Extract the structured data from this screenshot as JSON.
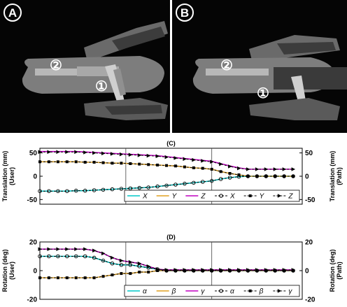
{
  "panels": {
    "a_label": "A",
    "b_label": "B",
    "marker_1": "①",
    "marker_2": "②"
  },
  "colors": {
    "x_user": "#00c8c8",
    "y_user": "#e0a020",
    "z_user": "#c000c0",
    "path": "#000000"
  },
  "chart_data": [
    {
      "type": "line",
      "title": "(C)",
      "ylabel_left": [
        "Translation (mm)",
        "(User)"
      ],
      "ylabel_right": [
        "Translation (mm)",
        "(Path)"
      ],
      "ylim": [
        -60,
        60
      ],
      "yticks": [
        50,
        0,
        -50
      ],
      "xlim": [
        0,
        29
      ],
      "vlines": [
        9.5,
        19
      ],
      "legend": {
        "placement": "bottom-right",
        "labels": [
          "X",
          "Y",
          "Z",
          "X",
          "Y",
          "Z"
        ]
      },
      "x": [
        0,
        1,
        2,
        3,
        4,
        5,
        6,
        7,
        8,
        9,
        10,
        11,
        12,
        13,
        14,
        15,
        16,
        17,
        18,
        19,
        20,
        21,
        22,
        23,
        24,
        25,
        26,
        27,
        28
      ],
      "series": [
        {
          "name": "X",
          "role": "user",
          "color": "#00c8c8",
          "values": [
            -32,
            -32,
            -32,
            -32,
            -31,
            -31,
            -30,
            -29,
            -28,
            -27,
            -26,
            -25,
            -24,
            -22,
            -20,
            -18,
            -16,
            -14,
            -12,
            -10,
            -6,
            -3,
            -1,
            0,
            0,
            0,
            0,
            0,
            0
          ]
        },
        {
          "name": "Y",
          "role": "user",
          "color": "#e0a020",
          "values": [
            31,
            31,
            31,
            31,
            31,
            30,
            30,
            29,
            28,
            28,
            27,
            26,
            25,
            24,
            23,
            22,
            20,
            18,
            17,
            15,
            10,
            6,
            3,
            0,
            0,
            0,
            0,
            0,
            0
          ]
        },
        {
          "name": "Z",
          "role": "user",
          "color": "#c000c0",
          "values": [
            53,
            53,
            53,
            53,
            53,
            52,
            51,
            50,
            49,
            48,
            47,
            46,
            45,
            44,
            42,
            40,
            38,
            36,
            34,
            32,
            27,
            22,
            18,
            15,
            15,
            15,
            15,
            15,
            15
          ]
        },
        {
          "name": "X",
          "role": "path",
          "marker": "circle",
          "values": [
            -32,
            -32,
            -32,
            -32,
            -31,
            -31,
            -30,
            -29,
            -28,
            -27,
            -26,
            -25,
            -24,
            -22,
            -20,
            -18,
            -16,
            -14,
            -12,
            -10,
            -6,
            -3,
            -1,
            0,
            0,
            0,
            0,
            0,
            0
          ]
        },
        {
          "name": "Y",
          "role": "path",
          "marker": "square",
          "values": [
            31,
            31,
            31,
            31,
            31,
            30,
            30,
            29,
            28,
            28,
            27,
            26,
            25,
            24,
            23,
            22,
            20,
            18,
            17,
            15,
            10,
            6,
            3,
            0,
            0,
            0,
            0,
            0,
            0
          ]
        },
        {
          "name": "Z",
          "role": "path",
          "marker": "triangle",
          "values": [
            52,
            52,
            52,
            52,
            52,
            51,
            50,
            49,
            48,
            47,
            46,
            45,
            44,
            43,
            41,
            39,
            37,
            35,
            33,
            31,
            26,
            21,
            17,
            15,
            15,
            15,
            15,
            15,
            15
          ]
        }
      ]
    },
    {
      "type": "line",
      "title": "(D)",
      "ylabel_left": [
        "Rotation (deg)",
        "(User)"
      ],
      "ylabel_right": [
        "Rotation (deg)",
        "(Path)"
      ],
      "ylim": [
        -20,
        20
      ],
      "yticks": [
        20,
        0,
        -20
      ],
      "xlim": [
        0,
        29
      ],
      "vlines": [
        9.5,
        19
      ],
      "legend": {
        "placement": "bottom-right",
        "labels": [
          "α",
          "β",
          "γ",
          "α",
          "β",
          "γ"
        ]
      },
      "x": [
        0,
        1,
        2,
        3,
        4,
        5,
        6,
        7,
        8,
        9,
        10,
        11,
        12,
        13,
        14,
        15,
        16,
        17,
        18,
        19,
        20,
        21,
        22,
        23,
        24,
        25,
        26,
        27,
        28
      ],
      "series": [
        {
          "name": "α",
          "role": "user",
          "color": "#00c8c8",
          "values": [
            10,
            10,
            10,
            10,
            10,
            10,
            9,
            7,
            5,
            4,
            4,
            3,
            2,
            1,
            0,
            0,
            0,
            0,
            0,
            0,
            0,
            0,
            0,
            0,
            0,
            0,
            0,
            0,
            0
          ]
        },
        {
          "name": "β",
          "role": "user",
          "color": "#e0a020",
          "values": [
            -5,
            -5,
            -5,
            -5,
            -5,
            -5,
            -5,
            -4,
            -3,
            -2,
            -2,
            -1,
            -1,
            0,
            0,
            0,
            0,
            0,
            0,
            0,
            0,
            0,
            0,
            0,
            0,
            0,
            0,
            0,
            0
          ]
        },
        {
          "name": "γ",
          "role": "user",
          "color": "#c000c0",
          "values": [
            15,
            15,
            15,
            15,
            15,
            15,
            14,
            12,
            9,
            7,
            6,
            5,
            3,
            1,
            0.5,
            0.5,
            0.5,
            0.5,
            0.5,
            0.5,
            0.5,
            0.5,
            0.5,
            0.5,
            0.5,
            0.5,
            0.5,
            0.5,
            0.5
          ]
        },
        {
          "name": "α",
          "role": "path",
          "marker": "circle",
          "values": [
            10,
            10,
            10,
            10,
            10,
            10,
            9,
            7,
            5,
            4,
            4,
            3,
            2,
            1,
            0,
            0,
            0,
            0,
            0,
            0,
            0,
            0,
            0,
            0,
            0,
            0,
            0,
            0,
            0
          ]
        },
        {
          "name": "β",
          "role": "path",
          "marker": "square",
          "values": [
            -5,
            -5,
            -5,
            -5,
            -5,
            -5,
            -5,
            -4,
            -3,
            -2,
            -2,
            -1,
            -1,
            0,
            0,
            0,
            0,
            0,
            0,
            0,
            0,
            0,
            0,
            0,
            0,
            0,
            0,
            0,
            0
          ]
        },
        {
          "name": "γ",
          "role": "path",
          "marker": "triangle",
          "values": [
            15,
            15,
            15,
            15,
            15,
            15,
            14,
            12,
            9,
            7,
            6,
            5,
            3,
            1,
            0.5,
            0.5,
            0.5,
            0.5,
            0.5,
            0.5,
            0.5,
            0.5,
            0.5,
            0.5,
            0.5,
            0.5,
            0.5,
            0.5,
            0.5
          ]
        }
      ]
    }
  ]
}
